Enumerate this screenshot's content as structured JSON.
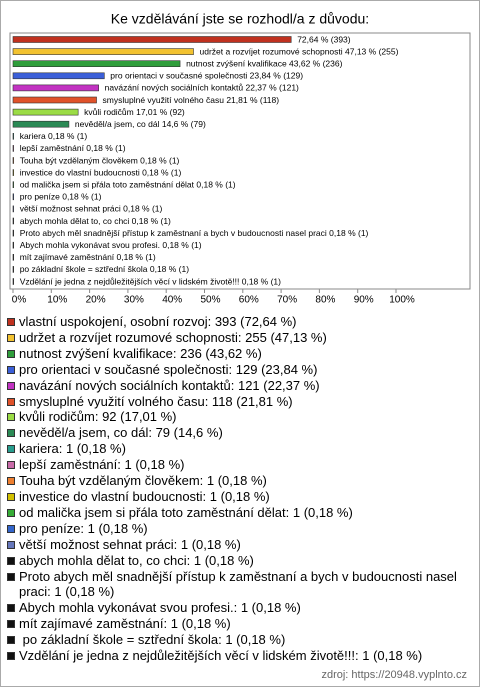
{
  "chart_data": {
    "type": "hbar",
    "title": "Ke vzdělávání jste se rozhodl/a z důvodu:",
    "values": [
      72.64,
      47.13,
      43.62,
      23.84,
      22.37,
      21.81,
      17.01,
      14.6,
      0.18,
      0.18,
      0.18,
      0.18,
      0.18,
      0.18,
      0.18,
      0.18,
      0.18,
      0.18,
      0.18,
      0.18,
      0.18
    ],
    "value_labels": [
      "72,64 % (393)",
      "udržet a rozvíjet rozumové schopnosti 47,13 % (255)",
      "nutnost zvýšení kvalifikace 43,62 % (236)",
      "pro orientaci v současné společnosti 23,84 % (129)",
      "navázání nových sociálních kontaktů 22,37 % (121)",
      "smysluplné využití volného času 21,81 % (118)",
      "kvůli rodičům 17,01 % (92)",
      "nevěděl/a jsem, co dál 14,6 % (79)",
      "kariera 0,18 % (1)",
      "lepší zaměstnání 0,18 % (1)",
      "Touha být vzdělaným člověkem 0,18 % (1)",
      "investice do vlastní budoucnosti 0,18 % (1)",
      "od malička jsem si přála toto zaměstnání dělat 0,18 % (1)",
      "pro peníze 0,18 % (1)",
      "větší možnost sehnat práci 0,18 % (1)",
      "abych mohla dělat to, co chci 0,18 % (1)",
      "Proto abych měl snadnější přístup k zaměstnaní a bych v budoucnosti nasel praci 0,18 % (1)",
      "Abych mohla vykonávat svou profesi. 0,18 % (1)",
      "mít zajímavé zaměstnání 0,18 % (1)",
      " po základní škole = sztřední škola 0,18 % (1)",
      "Vzdělání je jedna z nejdůležitějších věcí v lidském životě!!! 0,18 % (1)"
    ],
    "legend_labels": [
      "vlastní uspokojení, osobní rozvoj: 393 (72,64 %)",
      "udržet a rozvíjet rozumové schopnosti: 255 (47,13 %)",
      "nutnost zvýšení kvalifikace: 236 (43,62 %)",
      "pro orientaci v současné společnosti: 129 (23,84 %)",
      "navázání nových sociálních kontaktů: 121 (22,37 %)",
      "smysluplné využití volného času: 118 (21,81 %)",
      "kvůli rodičům: 92 (17,01 %)",
      "nevěděl/a jsem, co dál: 79 (14,6 %)",
      "kariera: 1 (0,18 %)",
      "lepší zaměstnání: 1 (0,18 %)",
      "Touha být vzdělaným člověkem: 1 (0,18 %)",
      "investice do vlastní budoucnosti: 1 (0,18 %)",
      "od malička jsem si přála toto zaměstnání dělat: 1 (0,18 %)",
      "pro peníze: 1 (0,18 %)",
      "větší možnost sehnat práci: 1 (0,18 %)",
      "abych mohla dělat to, co chci: 1 (0,18 %)",
      "Proto abych měl snadnější přístup k zaměstnaní a bych v budoucnosti nasel praci: 1 (0,18 %)",
      "Abych mohla vykonávat svou profesi.: 1 (0,18 %)",
      "mít zajímavé zaměstnání: 1 (0,18 %)",
      " po základní škole = sztřední škola: 1 (0,18 %)",
      "Vzdělání je jedna z nejdůležitějších věcí v lidském životě!!!: 1 (0,18 %)"
    ],
    "colors": [
      "#c0311f",
      "#f2c230",
      "#2f9e3b",
      "#3b5fd8",
      "#c233c2",
      "#e0522a",
      "#9bdc45",
      "#2b8a55",
      "#279d8e",
      "#c86aa8",
      "#ee7f30",
      "#d2c000",
      "#36ac36",
      "#3366cc",
      "#6677bb",
      "#111111",
      "#111111",
      "#111111",
      "#111111",
      "#111111",
      "#111111"
    ],
    "xlim": [
      0,
      100
    ],
    "xticks": [
      {
        "value": 0,
        "label": "0%"
      },
      {
        "value": 10,
        "label": "10%"
      },
      {
        "value": 20,
        "label": "20%"
      },
      {
        "value": 30,
        "label": "30%"
      },
      {
        "value": 40,
        "label": "40%"
      },
      {
        "value": 50,
        "label": "50%"
      },
      {
        "value": 60,
        "label": "60%"
      },
      {
        "value": 70,
        "label": "70%"
      },
      {
        "value": 80,
        "label": "80%"
      },
      {
        "value": 90,
        "label": "90%"
      },
      {
        "value": 100,
        "label": "100%"
      }
    ],
    "footer": "zdroj: https://20948.vyplnto.cz"
  }
}
